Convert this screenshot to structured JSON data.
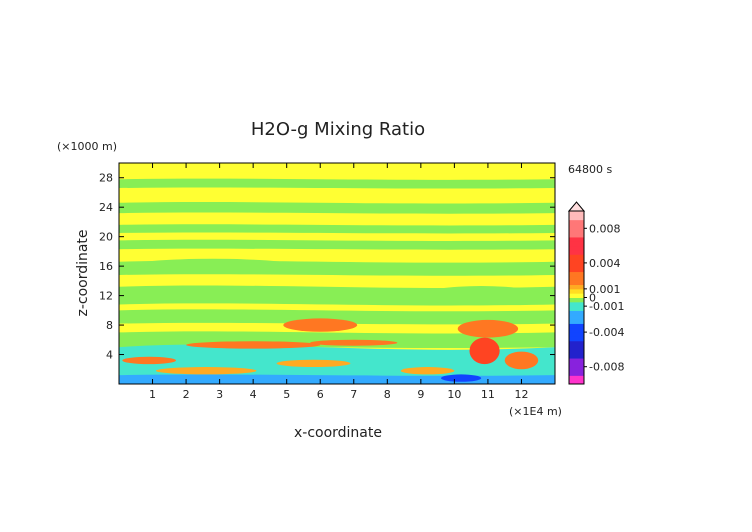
{
  "chart_data": {
    "type": "heatmap",
    "title": "H2O-g Mixing Ratio",
    "xlabel": "x-coordinate",
    "ylabel": "z-coordinate",
    "x_unit": "(×1E4 m)",
    "y_unit": "(×1000 m)",
    "time_label": "64800 s",
    "xlim": [
      0,
      13
    ],
    "ylim": [
      0,
      30
    ],
    "x_ticks": [
      1,
      2,
      3,
      4,
      5,
      6,
      7,
      8,
      9,
      10,
      11,
      12
    ],
    "y_ticks": [
      4,
      8,
      12,
      16,
      20,
      24,
      28
    ],
    "colorbar": {
      "range": [
        -0.01,
        0.01
      ],
      "labels": [
        {
          "value": 0.008,
          "text": "0.008"
        },
        {
          "value": 0.004,
          "text": "0.004"
        },
        {
          "value": 0.001,
          "text": "0.001"
        },
        {
          "value": 0,
          "text": "0"
        },
        {
          "value": -0.001,
          "text": "-0.001"
        },
        {
          "value": -0.004,
          "text": "-0.004"
        },
        {
          "value": -0.008,
          "text": "-0.008"
        }
      ],
      "colors": [
        {
          "value": -0.01,
          "color": "#ff33cc"
        },
        {
          "value": -0.008,
          "color": "#8822dd"
        },
        {
          "value": -0.006,
          "color": "#2222cc"
        },
        {
          "value": -0.004,
          "color": "#1144ff"
        },
        {
          "value": -0.002,
          "color": "#33aaff"
        },
        {
          "value": -0.001,
          "color": "#44e6cc"
        },
        {
          "value": -0.0003,
          "color": "#88ee55"
        },
        {
          "value": 0,
          "color": "#ffff33"
        },
        {
          "value": 0.0005,
          "color": "#ffdd22"
        },
        {
          "value": 0.001,
          "color": "#ffaa22"
        },
        {
          "value": 0.002,
          "color": "#ff7722"
        },
        {
          "value": 0.004,
          "color": "#ff4422"
        },
        {
          "value": 0.006,
          "color": "#ff3344"
        },
        {
          "value": 0.008,
          "color": "#ff7777"
        },
        {
          "value": 0.01,
          "color": "#ffbbbb"
        }
      ]
    },
    "features": [
      {
        "kind": "band",
        "x": [
          0,
          13
        ],
        "z": [
          28.6,
          30
        ],
        "value": 0.0
      },
      {
        "kind": "band",
        "x": [
          0,
          13
        ],
        "z": [
          26.6,
          27.8
        ],
        "value": -0.0004
      },
      {
        "kind": "band",
        "x": [
          0,
          13
        ],
        "z": [
          23.2,
          24.6
        ],
        "value": -0.0004
      },
      {
        "kind": "band",
        "x": [
          0,
          13
        ],
        "z": [
          20.5,
          21.6
        ],
        "value": -0.0004
      },
      {
        "kind": "band",
        "x": [
          0,
          13
        ],
        "z": [
          18.3,
          19.5
        ],
        "value": -0.0004
      },
      {
        "kind": "band",
        "x": [
          0,
          13
        ],
        "z": [
          14.8,
          16.6
        ],
        "value": -0.0004
      },
      {
        "kind": "band",
        "x": [
          0,
          13
        ],
        "z": [
          10.8,
          13.2
        ],
        "value": -0.0004
      },
      {
        "kind": "band",
        "x": [
          0,
          13
        ],
        "z": [
          8.2,
          10.0
        ],
        "value": -0.0004
      },
      {
        "kind": "band",
        "x": [
          0,
          13
        ],
        "z": [
          5.0,
          7.0
        ],
        "value": -0.0004
      },
      {
        "kind": "band",
        "x": [
          0,
          13
        ],
        "z": [
          0.0,
          5.0
        ],
        "value": -0.0012
      },
      {
        "kind": "band",
        "x": [
          0,
          13
        ],
        "z": [
          0.0,
          1.2
        ],
        "value": -0.0025
      },
      {
        "kind": "blob",
        "cx": 2.8,
        "cz": 16.0,
        "rx": 2.5,
        "rz": 1.0,
        "value": -0.0004
      },
      {
        "kind": "blob",
        "cx": 10.8,
        "cz": 12.0,
        "rx": 1.8,
        "rz": 1.3,
        "value": -0.0004
      },
      {
        "kind": "blob",
        "cx": 6.0,
        "cz": 8.0,
        "rx": 1.1,
        "rz": 0.9,
        "value": 0.0022
      },
      {
        "kind": "blob",
        "cx": 11.0,
        "cz": 7.5,
        "rx": 0.9,
        "rz": 1.2,
        "value": 0.0022
      },
      {
        "kind": "blob",
        "cx": 10.9,
        "cz": 4.5,
        "rx": 0.45,
        "rz": 1.8,
        "value": 0.0035
      },
      {
        "kind": "blob",
        "cx": 4.0,
        "cz": 5.3,
        "rx": 2.0,
        "rz": 0.5,
        "value": 0.0018
      },
      {
        "kind": "blob",
        "cx": 7.0,
        "cz": 5.6,
        "rx": 1.3,
        "rz": 0.4,
        "value": 0.0015
      },
      {
        "kind": "blob",
        "cx": 0.9,
        "cz": 3.2,
        "rx": 0.8,
        "rz": 0.5,
        "value": 0.0016
      },
      {
        "kind": "blob",
        "cx": 12.0,
        "cz": 3.2,
        "rx": 0.5,
        "rz": 1.2,
        "value": 0.0018
      },
      {
        "kind": "blob",
        "cx": 2.6,
        "cz": 1.8,
        "rx": 1.5,
        "rz": 0.5,
        "value": 0.0012
      },
      {
        "kind": "blob",
        "cx": 5.8,
        "cz": 2.8,
        "rx": 1.1,
        "rz": 0.5,
        "value": 0.0012
      },
      {
        "kind": "blob",
        "cx": 9.2,
        "cz": 1.8,
        "rx": 0.8,
        "rz": 0.5,
        "value": 0.0012
      },
      {
        "kind": "blob",
        "cx": 10.2,
        "cz": 0.8,
        "rx": 0.6,
        "rz": 0.5,
        "value": -0.004
      },
      {
        "kind": "blob",
        "cx": 7.5,
        "cz": 0.6,
        "rx": 0.6,
        "rz": 0.4,
        "value": -0.003
      }
    ]
  }
}
